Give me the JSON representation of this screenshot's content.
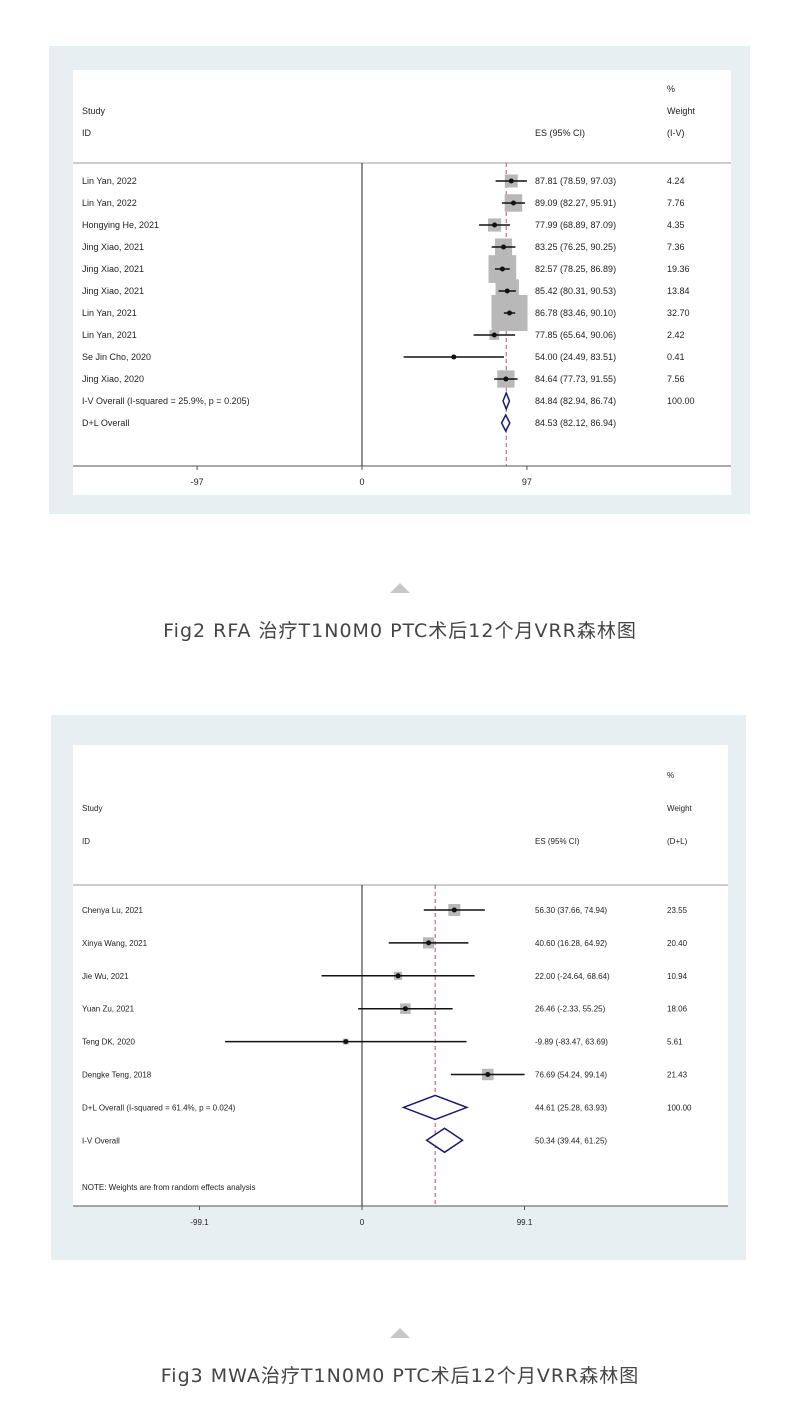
{
  "chart_data": [
    {
      "type": "forest",
      "header": {
        "pct": "%",
        "study": "Study",
        "id": "ID",
        "es": "ES (95% CI)",
        "weight": "Weight",
        "weight_type": "(I-V)"
      },
      "xticks": [
        -97,
        0,
        97
      ],
      "null_line": 0,
      "overall_line": 84.84,
      "studies": [
        {
          "label": "Lin Yan, 2022",
          "es": 87.81,
          "lo": 78.59,
          "hi": 97.03,
          "text": "87.81 (78.59, 97.03)",
          "weight": "4.24"
        },
        {
          "label": "Lin Yan, 2022",
          "es": 89.09,
          "lo": 82.27,
          "hi": 95.91,
          "text": "89.09 (82.27, 95.91)",
          "weight": "7.76"
        },
        {
          "label": "Hongying He, 2021",
          "es": 77.99,
          "lo": 68.89,
          "hi": 87.09,
          "text": "77.99 (68.89, 87.09)",
          "weight": "4.35"
        },
        {
          "label": "Jing Xiao, 2021",
          "es": 83.25,
          "lo": 76.25,
          "hi": 90.25,
          "text": "83.25 (76.25, 90.25)",
          "weight": "7.36"
        },
        {
          "label": "Jing Xiao, 2021",
          "es": 82.57,
          "lo": 78.25,
          "hi": 86.89,
          "text": "82.57 (78.25, 86.89)",
          "weight": "19.36"
        },
        {
          "label": "Jing Xiao, 2021",
          "es": 85.42,
          "lo": 80.31,
          "hi": 90.53,
          "text": "85.42 (80.31, 90.53)",
          "weight": "13.84"
        },
        {
          "label": "Lin Yan, 2021",
          "es": 86.78,
          "lo": 83.46,
          "hi": 90.1,
          "text": "86.78 (83.46, 90.10)",
          "weight": "32.70"
        },
        {
          "label": "Lin Yan, 2021",
          "es": 77.85,
          "lo": 65.64,
          "hi": 90.06,
          "text": "77.85 (65.64, 90.06)",
          "weight": "2.42"
        },
        {
          "label": "Se Jin Cho, 2020",
          "es": 54.0,
          "lo": 24.49,
          "hi": 83.51,
          "text": "54.00 (24.49, 83.51)",
          "weight": "0.41"
        },
        {
          "label": "Jing Xiao, 2020",
          "es": 84.64,
          "lo": 77.73,
          "hi": 91.55,
          "text": "84.64 (77.73, 91.55)",
          "weight": "7.56"
        }
      ],
      "overall": [
        {
          "label": "I-V Overall  (I-squared = 25.9%, p = 0.205)",
          "es": 84.84,
          "lo": 82.94,
          "hi": 86.74,
          "text": "84.84 (82.94, 86.74)",
          "weight": "100.00"
        },
        {
          "label": "D+L Overall",
          "es": 84.53,
          "lo": 82.12,
          "hi": 86.94,
          "text": "84.53 (82.12, 86.94)",
          "weight": ""
        }
      ],
      "note": ""
    },
    {
      "type": "forest",
      "header": {
        "pct": "%",
        "study": "Study",
        "id": "ID",
        "es": "ES (95% CI)",
        "weight": "Weight",
        "weight_type": "(D+L)"
      },
      "xticks": [
        -99.1,
        0,
        99.1
      ],
      "null_line": 0,
      "overall_line": 44.61,
      "studies": [
        {
          "label": "Chenya Lu, 2021",
          "es": 56.3,
          "lo": 37.66,
          "hi": 74.94,
          "text": "56.30 (37.66, 74.94)",
          "weight": "23.55"
        },
        {
          "label": "Xinya Wang, 2021",
          "es": 40.6,
          "lo": 16.28,
          "hi": 64.92,
          "text": "40.60 (16.28, 64.92)",
          "weight": "20.40"
        },
        {
          "label": "Jie Wu, 2021",
          "es": 22.0,
          "lo": -24.64,
          "hi": 68.64,
          "text": "22.00 (-24.64, 68.64)",
          "weight": "10.94"
        },
        {
          "label": "Yuan Zu, 2021",
          "es": 26.46,
          "lo": -2.33,
          "hi": 55.25,
          "text": "26.46 (-2.33, 55.25)",
          "weight": "18.06"
        },
        {
          "label": "Teng DK, 2020",
          "es": -9.89,
          "lo": -83.47,
          "hi": 63.69,
          "text": "-9.89 (-83.47, 63.69)",
          "weight": "5.61"
        },
        {
          "label": "Dengke Teng, 2018",
          "es": 76.69,
          "lo": 54.24,
          "hi": 99.14,
          "text": "76.69 (54.24, 99.14)",
          "weight": "21.43"
        }
      ],
      "overall": [
        {
          "label": "D+L Overall  (I-squared = 61.4%, p = 0.024)",
          "es": 44.61,
          "lo": 25.28,
          "hi": 63.93,
          "text": "44.61 (25.28, 63.93)",
          "weight": "100.00"
        },
        {
          "label": "I-V Overall",
          "es": 50.34,
          "lo": 39.44,
          "hi": 61.25,
          "text": "50.34 (39.44, 61.25)",
          "weight": ""
        }
      ],
      "note": "NOTE: Weights are from random effects analysis"
    }
  ],
  "captions": [
    "Fig2  RFA 治疗T1N0M0  PTC术后12个月VRR森林图",
    "Fig3  MWA治疗T1N0M0  PTC术后12个月VRR森林图"
  ],
  "colors": {
    "panel": "#e8eff3",
    "box": "#b8b8b8",
    "diamond": "#1a1a6e",
    "dashed": "#c0506a"
  }
}
